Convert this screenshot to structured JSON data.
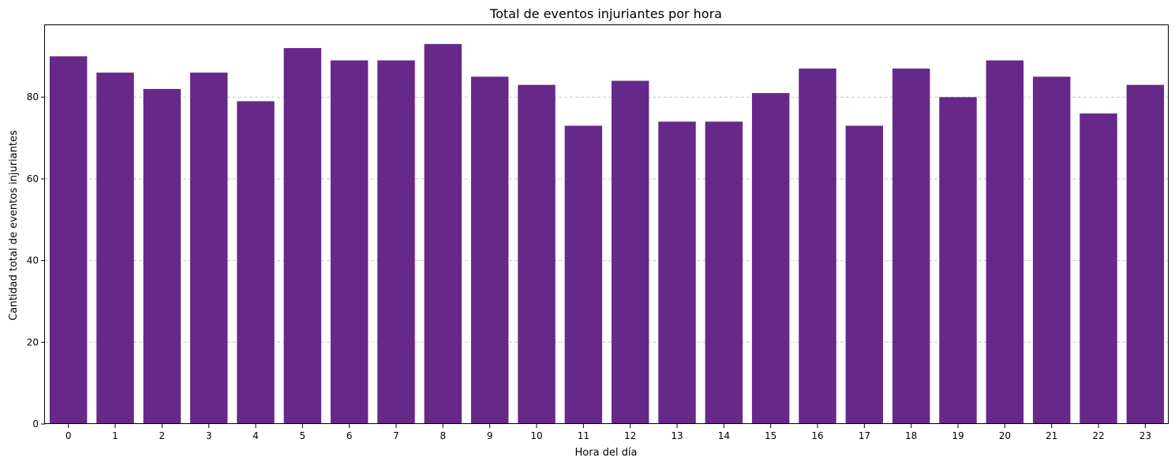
{
  "chart_data": {
    "type": "bar",
    "title": "Total de eventos injuriantes por hora",
    "xlabel": "Hora del día",
    "ylabel": "Cantidad total de eventos injuriantes",
    "categories": [
      "0",
      "1",
      "2",
      "3",
      "4",
      "5",
      "6",
      "7",
      "8",
      "9",
      "10",
      "11",
      "12",
      "13",
      "14",
      "15",
      "16",
      "17",
      "18",
      "19",
      "20",
      "21",
      "22",
      "23"
    ],
    "values": [
      90,
      86,
      82,
      86,
      79,
      92,
      89,
      89,
      93,
      85,
      83,
      73,
      84,
      74,
      74,
      81,
      87,
      73,
      87,
      80,
      89,
      85,
      76,
      83
    ],
    "ylim": [
      0,
      97.6
    ],
    "yticks": [
      0,
      20,
      40,
      60,
      80
    ],
    "grid": "y-dashed",
    "bar_color": "#66298a"
  }
}
